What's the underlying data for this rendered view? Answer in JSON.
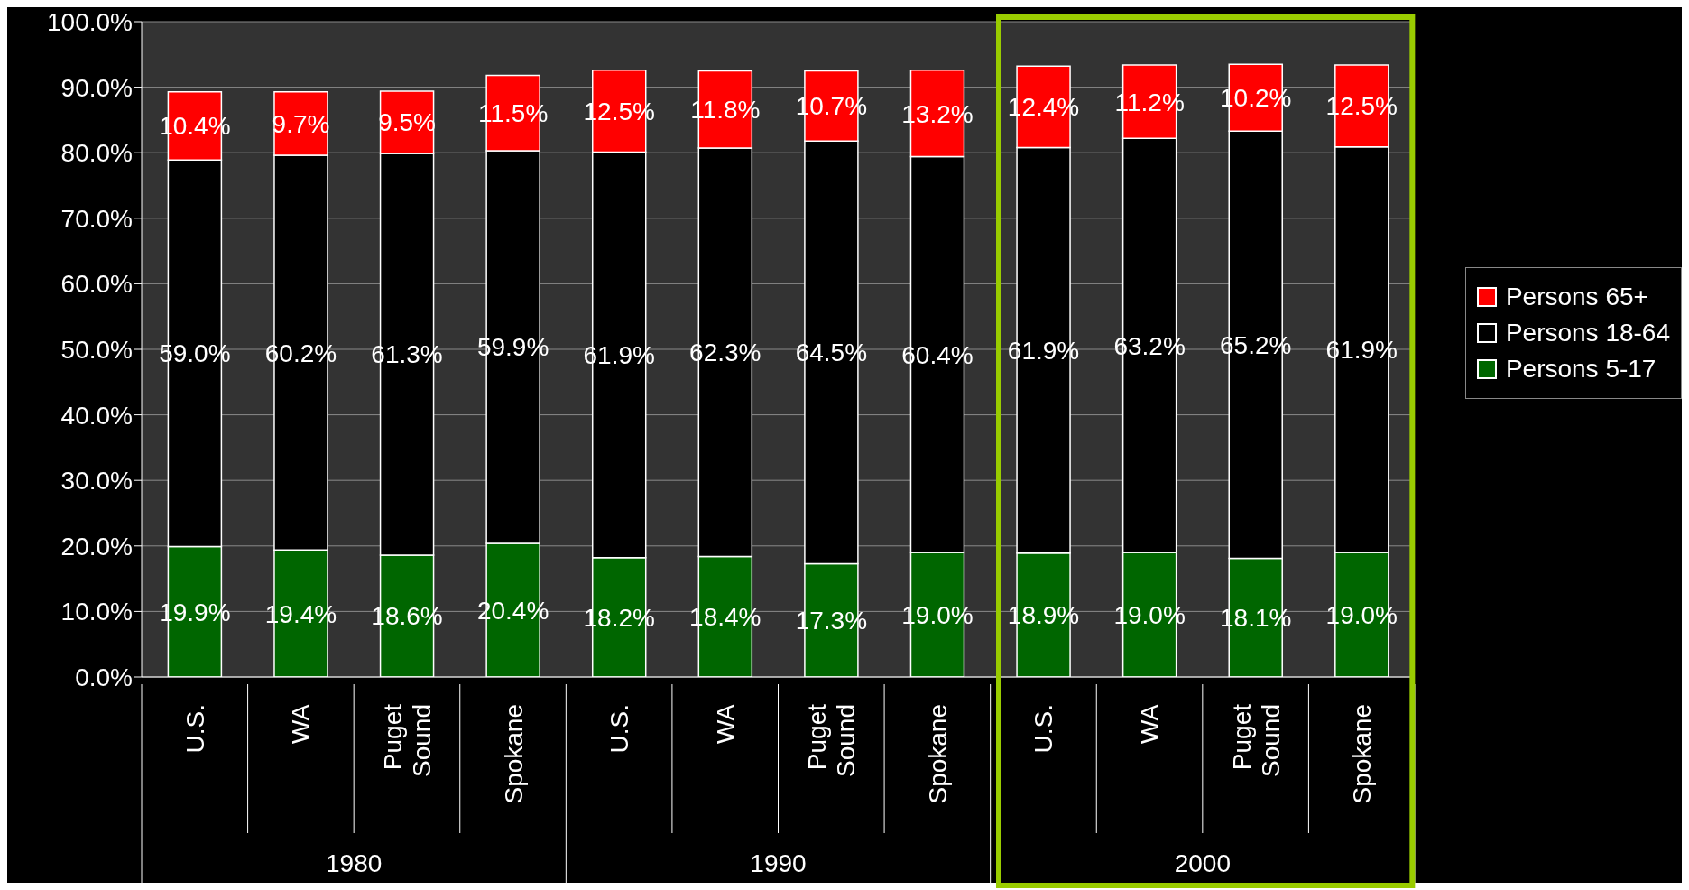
{
  "chart_data": {
    "type": "bar",
    "stacked": true,
    "categories": [
      "U.S.",
      "WA",
      "Puget Sound",
      "Spokane",
      "U.S.",
      "WA",
      "Puget Sound",
      "Spokane",
      "U.S.",
      "WA",
      "Puget Sound",
      "Spokane"
    ],
    "series": [
      {
        "name": "Persons 5-17",
        "color": "#006600",
        "values": [
          19.9,
          19.4,
          18.6,
          20.4,
          18.2,
          18.4,
          17.3,
          19.0,
          18.9,
          19.0,
          18.1,
          19.0
        ],
        "value_labels": [
          "19.9%",
          "19.4%",
          "18.6%",
          "20.4%",
          "18.2%",
          "18.4%",
          "17.3%",
          "19.0%",
          "18.9%",
          "19.0%",
          "18.1%",
          "19.0%"
        ]
      },
      {
        "name": "Persons 18-64",
        "color": "#000000",
        "values": [
          59.0,
          60.2,
          61.3,
          59.9,
          61.9,
          62.3,
          64.5,
          60.4,
          61.9,
          63.2,
          65.2,
          61.9
        ],
        "value_labels": [
          "59.0%",
          "60.2%",
          "61.3%",
          "59.9%",
          "61.9%",
          "62.3%",
          "64.5%",
          "60.4%",
          "61.9%",
          "63.2%",
          "65.2%",
          "61.9%"
        ]
      },
      {
        "name": "Persons 65+",
        "color": "#ff0000",
        "values": [
          10.4,
          9.7,
          9.5,
          11.5,
          12.5,
          11.8,
          10.7,
          13.2,
          12.4,
          11.2,
          10.2,
          12.5
        ],
        "value_labels": [
          "10.4%",
          "9.7%",
          "9.5%",
          "11.5%",
          "12.5%",
          "11.8%",
          "10.7%",
          "13.2%",
          "12.4%",
          "11.2%",
          "10.2%",
          "12.5%"
        ]
      }
    ],
    "annotations": [
      "1980",
      "1990",
      "2000"
    ],
    "ylim": [
      0,
      100
    ],
    "yticks": [
      {
        "value": 0,
        "label": "0.0%"
      },
      {
        "value": 10,
        "label": "10.0%"
      },
      {
        "value": 20,
        "label": "20.0%"
      },
      {
        "value": 30,
        "label": "30.0%"
      },
      {
        "value": 40,
        "label": "40.0%"
      },
      {
        "value": 50,
        "label": "50.0%"
      },
      {
        "value": 60,
        "label": "60.0%"
      },
      {
        "value": 70,
        "label": "70.0%"
      },
      {
        "value": 80,
        "label": "80.0%"
      },
      {
        "value": 90,
        "label": "90.0%"
      },
      {
        "value": 100,
        "label": "100.0%"
      }
    ],
    "grid": "y",
    "legend": "right"
  }
}
